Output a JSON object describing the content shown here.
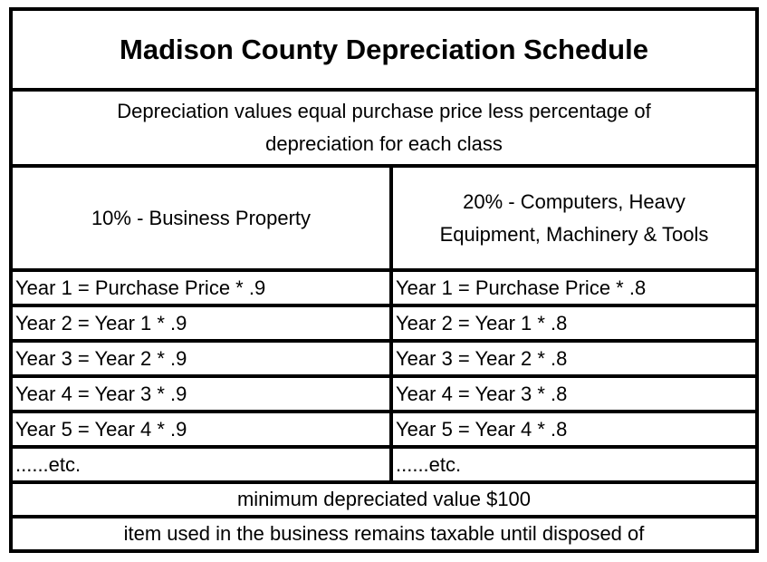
{
  "table": {
    "title": "Madison County Depreciation Schedule",
    "description": "Depreciation values equal purchase price less percentage of\ndepreciation for each class",
    "column_headers": [
      "10% - Business Property",
      "20% - Computers, Heavy\nEquipment, Machinery & Tools"
    ],
    "rows": [
      {
        "left": "Year 1 = Purchase Price * .9",
        "right": "Year 1 = Purchase Price * .8"
      },
      {
        "left": "Year 2 = Year 1 * .9",
        "right": "Year 2 = Year 1 * .8"
      },
      {
        "left": "Year 3 = Year 2 * .9",
        "right": "Year 3 = Year 2 * .8"
      },
      {
        "left": "Year 4 = Year 3 * .9",
        "right": "Year 4 = Year 3 * .8"
      },
      {
        "left": "Year 5 = Year 4 * .9",
        "right": "Year 5 = Year 4 * .8"
      },
      {
        "left": "......etc.",
        "right": "......etc."
      }
    ],
    "footnotes": [
      "minimum depreciated value $100",
      "item used in the business remains taxable until disposed of"
    ]
  },
  "colors": {
    "border": "#000000",
    "text": "#000000",
    "background": "#ffffff"
  }
}
